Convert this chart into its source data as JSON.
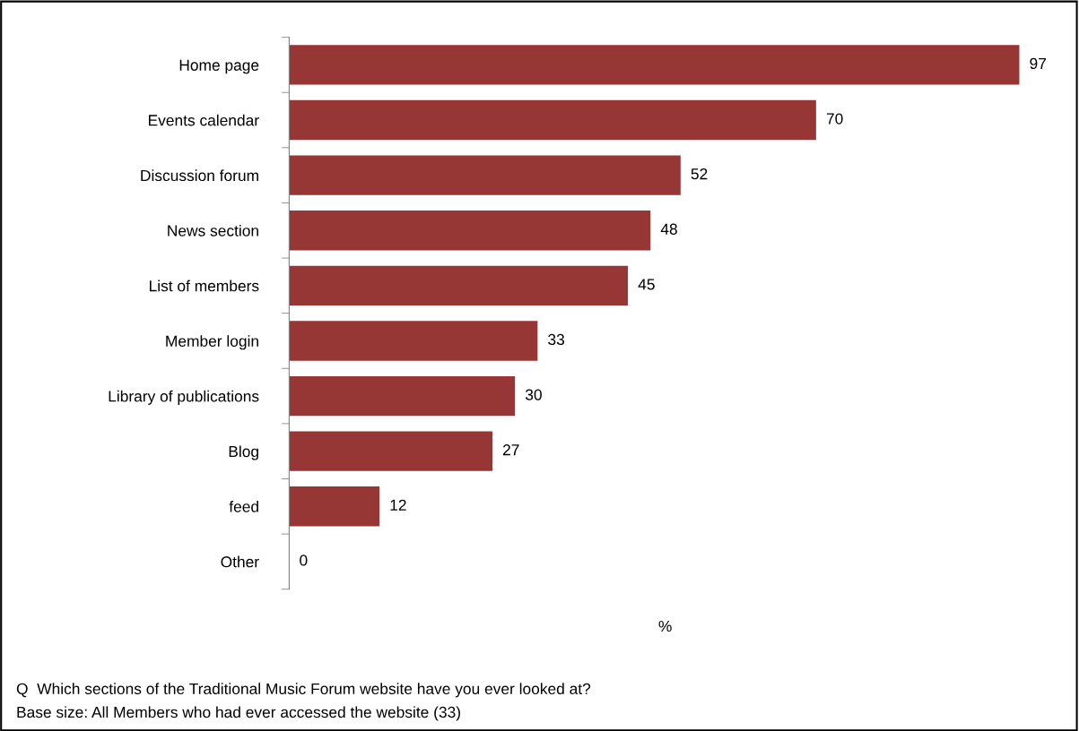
{
  "chart_data": {
    "type": "bar",
    "orientation": "horizontal",
    "categories": [
      "Home page",
      "Events calendar",
      "Discussion forum",
      "News section",
      "List of members",
      "Member login",
      "Library of publications",
      "Blog",
      "feed",
      "Other"
    ],
    "values": [
      97,
      70,
      52,
      48,
      45,
      33,
      30,
      27,
      12,
      0
    ],
    "color": "#963735",
    "data_labels": true,
    "xlabel": "%",
    "grid": false,
    "legend": false,
    "annotations": [
      "Q  Which sections of the Traditional Music Forum website have you ever looked at?",
      "Base size: All Members who had ever accessed the website (33)"
    ]
  }
}
